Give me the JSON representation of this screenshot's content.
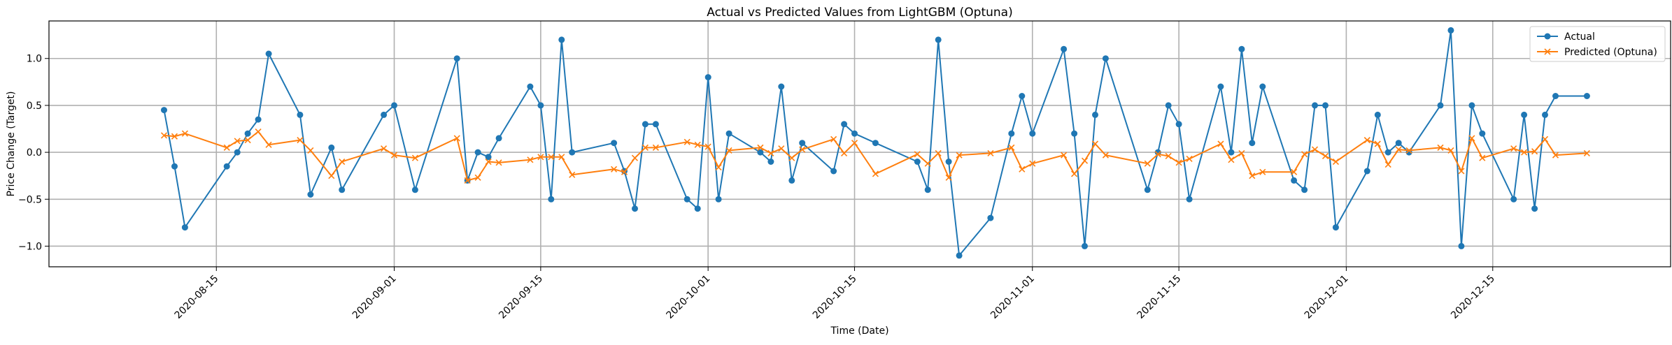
{
  "chart_data": {
    "type": "line",
    "title": "Actual vs Predicted Values from LightGBM (Optuna)",
    "xlabel": "Time (Date)",
    "ylabel": "Price Change (Target)",
    "xlim": [
      "2020-07-30",
      "2021-01-01"
    ],
    "ylim": [
      -1.22,
      1.4
    ],
    "x_ticks": [
      "2020-08-15",
      "2020-09-01",
      "2020-09-15",
      "2020-10-01",
      "2020-10-15",
      "2020-11-01",
      "2020-11-15",
      "2020-12-01",
      "2020-12-15"
    ],
    "y_ticks": [
      -1.0,
      -0.5,
      0.0,
      0.5,
      1.0
    ],
    "y_tick_labels": [
      "−1.0",
      "−0.5",
      "0.0",
      "0.5",
      "1.0"
    ],
    "grid": true,
    "legend_position": "upper right",
    "series": [
      {
        "name": "Actual",
        "color": "#1f77b4",
        "marker": "circle",
        "points": [
          [
            "2020-08-10",
            0.45
          ],
          [
            "2020-08-11",
            -0.15
          ],
          [
            "2020-08-12",
            -0.8
          ],
          [
            "2020-08-16",
            -0.15
          ],
          [
            "2020-08-17",
            0.0
          ],
          [
            "2020-08-18",
            0.2
          ],
          [
            "2020-08-19",
            0.35
          ],
          [
            "2020-08-20",
            1.05
          ],
          [
            "2020-08-23",
            0.4
          ],
          [
            "2020-08-24",
            -0.45
          ],
          [
            "2020-08-26",
            0.05
          ],
          [
            "2020-08-27",
            -0.4
          ],
          [
            "2020-08-31",
            0.4
          ],
          [
            "2020-09-01",
            0.5
          ],
          [
            "2020-09-03",
            -0.4
          ],
          [
            "2020-09-07",
            1.0
          ],
          [
            "2020-09-08",
            -0.3
          ],
          [
            "2020-09-09",
            0.0
          ],
          [
            "2020-09-10",
            -0.05
          ],
          [
            "2020-09-11",
            0.15
          ],
          [
            "2020-09-14",
            0.7
          ],
          [
            "2020-09-15",
            0.5
          ],
          [
            "2020-09-16",
            -0.5
          ],
          [
            "2020-09-17",
            1.2
          ],
          [
            "2020-09-18",
            0.0
          ],
          [
            "2020-09-22",
            0.1
          ],
          [
            "2020-09-23",
            -0.2
          ],
          [
            "2020-09-24",
            -0.6
          ],
          [
            "2020-09-25",
            0.3
          ],
          [
            "2020-09-26",
            0.3
          ],
          [
            "2020-09-29",
            -0.5
          ],
          [
            "2020-09-30",
            -0.6
          ],
          [
            "2020-10-01",
            0.8
          ],
          [
            "2020-10-02",
            -0.5
          ],
          [
            "2020-10-03",
            0.2
          ],
          [
            "2020-10-06",
            0.0
          ],
          [
            "2020-10-07",
            -0.1
          ],
          [
            "2020-10-08",
            0.7
          ],
          [
            "2020-10-09",
            -0.3
          ],
          [
            "2020-10-10",
            0.1
          ],
          [
            "2020-10-13",
            -0.2
          ],
          [
            "2020-10-14",
            0.3
          ],
          [
            "2020-10-15",
            0.2
          ],
          [
            "2020-10-17",
            0.1
          ],
          [
            "2020-10-21",
            -0.1
          ],
          [
            "2020-10-22",
            -0.4
          ],
          [
            "2020-10-23",
            1.2
          ],
          [
            "2020-10-24",
            -0.1
          ],
          [
            "2020-10-25",
            -1.1
          ],
          [
            "2020-10-28",
            -0.7
          ],
          [
            "2020-10-30",
            0.2
          ],
          [
            "2020-10-31",
            0.6
          ],
          [
            "2020-11-01",
            0.2
          ],
          [
            "2020-11-04",
            1.1
          ],
          [
            "2020-11-05",
            0.2
          ],
          [
            "2020-11-06",
            -1.0
          ],
          [
            "2020-11-07",
            0.4
          ],
          [
            "2020-11-08",
            1.0
          ],
          [
            "2020-11-12",
            -0.4
          ],
          [
            "2020-11-13",
            0.0
          ],
          [
            "2020-11-14",
            0.5
          ],
          [
            "2020-11-15",
            0.3
          ],
          [
            "2020-11-16",
            -0.5
          ],
          [
            "2020-11-19",
            0.7
          ],
          [
            "2020-11-20",
            0.0
          ],
          [
            "2020-11-21",
            1.1
          ],
          [
            "2020-11-22",
            0.1
          ],
          [
            "2020-11-23",
            0.7
          ],
          [
            "2020-11-26",
            -0.3
          ],
          [
            "2020-11-27",
            -0.4
          ],
          [
            "2020-11-28",
            0.5
          ],
          [
            "2020-11-29",
            0.5
          ],
          [
            "2020-11-30",
            -0.8
          ],
          [
            "2020-12-03",
            -0.2
          ],
          [
            "2020-12-04",
            0.4
          ],
          [
            "2020-12-05",
            0.0
          ],
          [
            "2020-12-06",
            0.1
          ],
          [
            "2020-12-07",
            0.0
          ],
          [
            "2020-12-10",
            0.5
          ],
          [
            "2020-12-11",
            1.3
          ],
          [
            "2020-12-12",
            -1.0
          ],
          [
            "2020-12-13",
            0.5
          ],
          [
            "2020-12-14",
            0.2
          ],
          [
            "2020-12-17",
            -0.5
          ],
          [
            "2020-12-18",
            0.4
          ],
          [
            "2020-12-19",
            -0.6
          ],
          [
            "2020-12-20",
            0.4
          ],
          [
            "2020-12-21",
            0.6
          ],
          [
            "2020-12-24",
            0.6
          ]
        ]
      },
      {
        "name": "Predicted (Optuna)",
        "color": "#ff7f0e",
        "marker": "x",
        "points": [
          [
            "2020-08-10",
            0.18
          ],
          [
            "2020-08-11",
            0.17
          ],
          [
            "2020-08-12",
            0.2
          ],
          [
            "2020-08-16",
            0.05
          ],
          [
            "2020-08-17",
            0.12
          ],
          [
            "2020-08-18",
            0.13
          ],
          [
            "2020-08-19",
            0.22
          ],
          [
            "2020-08-20",
            0.08
          ],
          [
            "2020-08-23",
            0.13
          ],
          [
            "2020-08-24",
            0.02
          ],
          [
            "2020-08-26",
            -0.25
          ],
          [
            "2020-08-27",
            -0.1
          ],
          [
            "2020-08-31",
            0.04
          ],
          [
            "2020-09-01",
            -0.03
          ],
          [
            "2020-09-03",
            -0.06
          ],
          [
            "2020-09-07",
            0.15
          ],
          [
            "2020-09-08",
            -0.3
          ],
          [
            "2020-09-09",
            -0.27
          ],
          [
            "2020-09-10",
            -0.1
          ],
          [
            "2020-09-11",
            -0.11
          ],
          [
            "2020-09-14",
            -0.08
          ],
          [
            "2020-09-15",
            -0.05
          ],
          [
            "2020-09-16",
            -0.05
          ],
          [
            "2020-09-17",
            -0.05
          ],
          [
            "2020-09-18",
            -0.24
          ],
          [
            "2020-09-22",
            -0.18
          ],
          [
            "2020-09-23",
            -0.21
          ],
          [
            "2020-09-24",
            -0.06
          ],
          [
            "2020-09-25",
            0.05
          ],
          [
            "2020-09-26",
            0.05
          ],
          [
            "2020-09-29",
            0.11
          ],
          [
            "2020-09-30",
            0.08
          ],
          [
            "2020-10-01",
            0.06
          ],
          [
            "2020-10-02",
            -0.16
          ],
          [
            "2020-10-03",
            0.02
          ],
          [
            "2020-10-06",
            0.05
          ],
          [
            "2020-10-07",
            -0.01
          ],
          [
            "2020-10-08",
            0.04
          ],
          [
            "2020-10-09",
            -0.06
          ],
          [
            "2020-10-10",
            0.03
          ],
          [
            "2020-10-13",
            0.14
          ],
          [
            "2020-10-14",
            -0.01
          ],
          [
            "2020-10-15",
            0.1
          ],
          [
            "2020-10-17",
            -0.23
          ],
          [
            "2020-10-21",
            -0.02
          ],
          [
            "2020-10-22",
            -0.12
          ],
          [
            "2020-10-23",
            -0.01
          ],
          [
            "2020-10-24",
            -0.27
          ],
          [
            "2020-10-25",
            -0.03
          ],
          [
            "2020-10-28",
            -0.01
          ],
          [
            "2020-10-30",
            0.05
          ],
          [
            "2020-10-31",
            -0.18
          ],
          [
            "2020-11-01",
            -0.12
          ],
          [
            "2020-11-04",
            -0.03
          ],
          [
            "2020-11-05",
            -0.23
          ],
          [
            "2020-11-06",
            -0.09
          ],
          [
            "2020-11-07",
            0.09
          ],
          [
            "2020-11-08",
            -0.03
          ],
          [
            "2020-11-12",
            -0.12
          ],
          [
            "2020-11-13",
            -0.02
          ],
          [
            "2020-11-14",
            -0.04
          ],
          [
            "2020-11-15",
            -0.11
          ],
          [
            "2020-11-16",
            -0.07
          ],
          [
            "2020-11-19",
            0.09
          ],
          [
            "2020-11-20",
            -0.08
          ],
          [
            "2020-11-21",
            -0.01
          ],
          [
            "2020-11-22",
            -0.25
          ],
          [
            "2020-11-23",
            -0.21
          ],
          [
            "2020-11-26",
            -0.21
          ],
          [
            "2020-11-27",
            -0.02
          ],
          [
            "2020-11-28",
            0.03
          ],
          [
            "2020-11-29",
            -0.04
          ],
          [
            "2020-11-30",
            -0.1
          ],
          [
            "2020-12-03",
            0.13
          ],
          [
            "2020-12-04",
            0.09
          ],
          [
            "2020-12-05",
            -0.13
          ],
          [
            "2020-12-06",
            0.03
          ],
          [
            "2020-12-07",
            0.02
          ],
          [
            "2020-12-10",
            0.05
          ],
          [
            "2020-12-11",
            0.02
          ],
          [
            "2020-12-12",
            -0.2
          ],
          [
            "2020-12-13",
            0.15
          ],
          [
            "2020-12-14",
            -0.06
          ],
          [
            "2020-12-17",
            0.04
          ],
          [
            "2020-12-18",
            0.0
          ],
          [
            "2020-12-19",
            0.01
          ],
          [
            "2020-12-20",
            0.14
          ],
          [
            "2020-12-21",
            -0.03
          ],
          [
            "2020-12-24",
            -0.01
          ]
        ]
      }
    ]
  }
}
